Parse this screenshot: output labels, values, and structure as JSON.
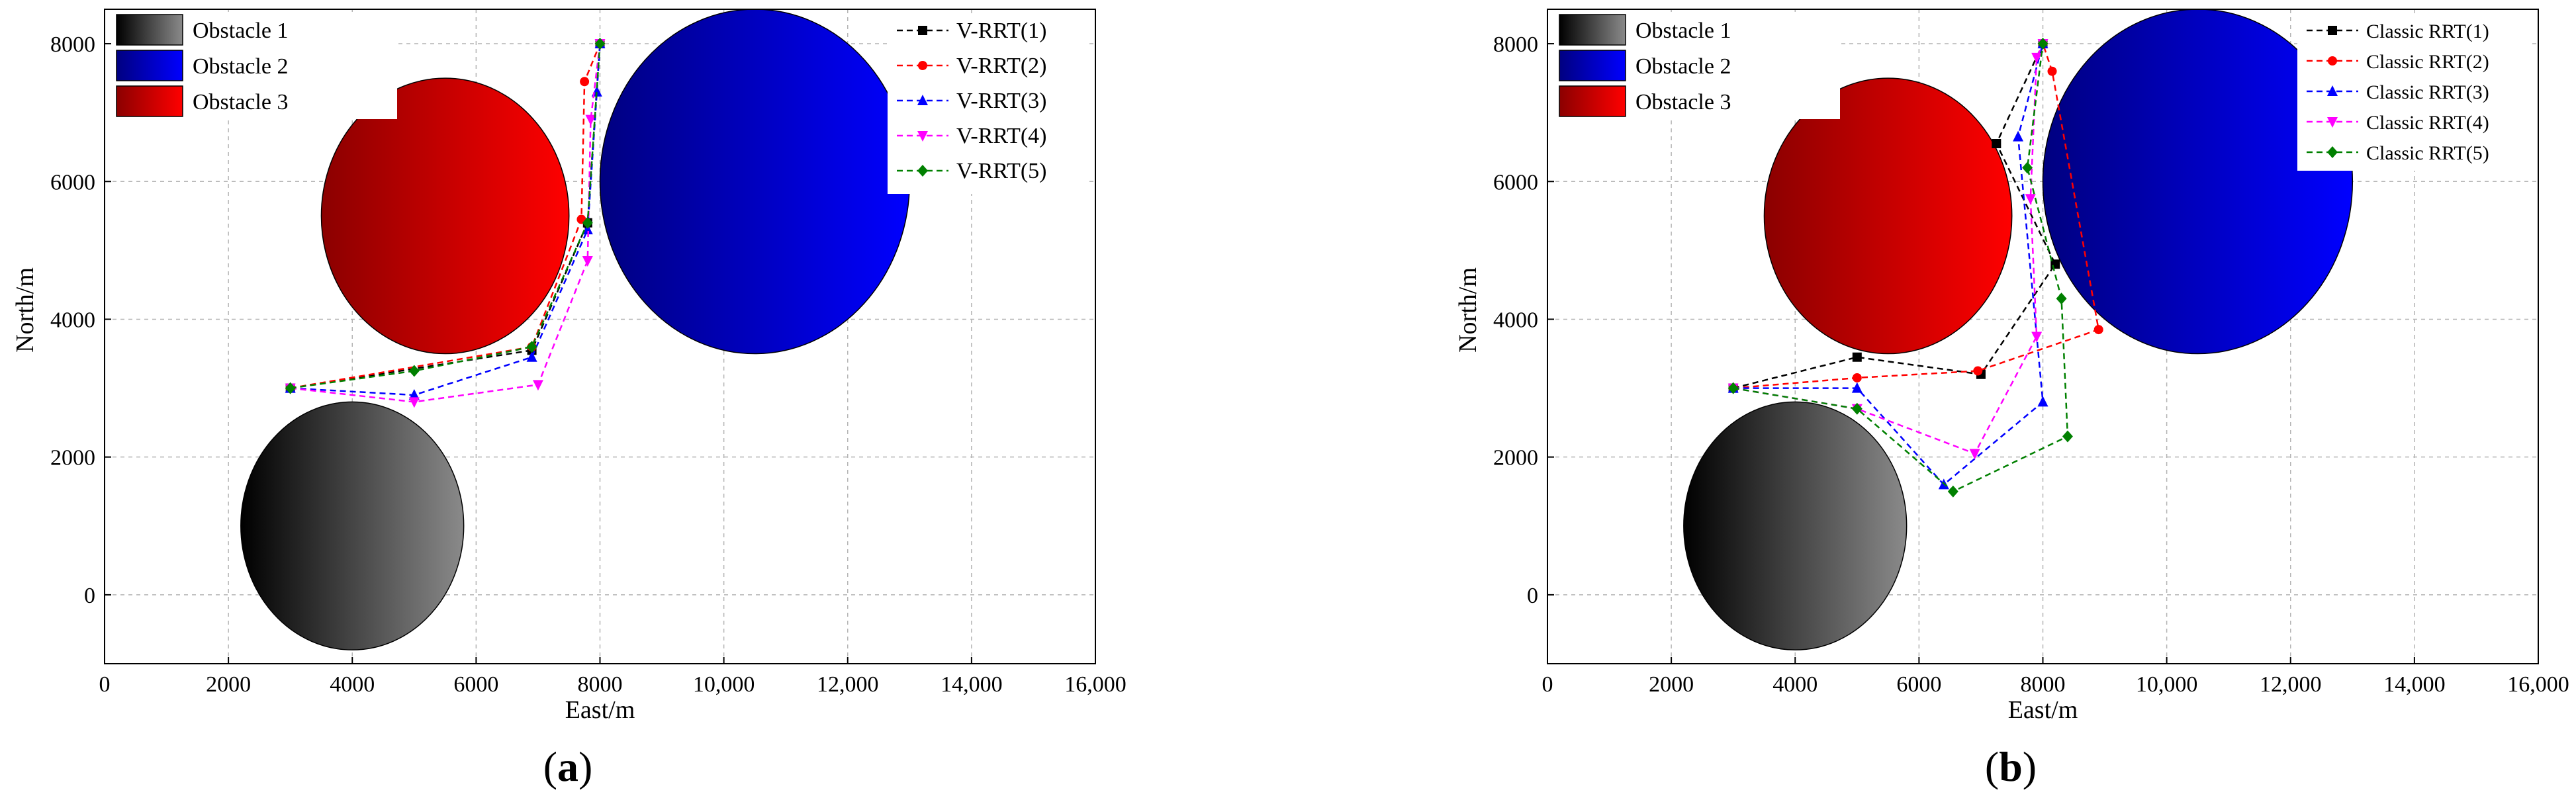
{
  "chart_data": [
    {
      "panel": "a",
      "type": "line",
      "xlabel": "East/m",
      "ylabel": "North/m",
      "xlim": [
        0,
        16000
      ],
      "ylim": [
        -1000,
        8500
      ],
      "x_ticks": [
        0,
        2000,
        4000,
        6000,
        8000,
        10000,
        12000,
        14000,
        16000
      ],
      "x_tick_labels": [
        "0",
        "2000",
        "4000",
        "6000",
        "8000",
        "10,000",
        "12,000",
        "14,000",
        "16,000"
      ],
      "y_ticks": [
        0,
        2000,
        4000,
        6000,
        8000
      ],
      "y_tick_labels": [
        "0",
        "2000",
        "4000",
        "6000",
        "8000"
      ],
      "grid": true,
      "obstacles": [
        {
          "name": "Obstacle 1",
          "cx": 4000,
          "cy": 1000,
          "r": 1800,
          "color_dark": "#000000",
          "color_light": "#8a8a8a"
        },
        {
          "name": "Obstacle 2",
          "cx": 10500,
          "cy": 6000,
          "r": 2500,
          "color_dark": "#000080",
          "color_light": "#0000ff"
        },
        {
          "name": "Obstacle 3",
          "cx": 5500,
          "cy": 5500,
          "r": 2000,
          "color_dark": "#8b0000",
          "color_light": "#ff0000"
        }
      ],
      "obstacle_legend_position": "top-left",
      "series_legend_position": "top-right",
      "series": [
        {
          "name": "V-RRT(1)",
          "color": "#000000",
          "marker": "square",
          "x": [
            3000,
            6900,
            7800,
            8000
          ],
          "y": [
            3000,
            3550,
            5400,
            8000
          ]
        },
        {
          "name": "V-RRT(2)",
          "color": "#ff0000",
          "marker": "circle",
          "x": [
            3000,
            6900,
            7700,
            7750,
            8000
          ],
          "y": [
            3000,
            3600,
            5450,
            7450,
            8000
          ]
        },
        {
          "name": "V-RRT(3)",
          "color": "#0000ff",
          "marker": "triangle-up",
          "x": [
            3000,
            5000,
            6900,
            7800,
            7950,
            8000
          ],
          "y": [
            3000,
            2900,
            3450,
            5300,
            7300,
            8000
          ]
        },
        {
          "name": "V-RRT(4)",
          "color": "#ff00ff",
          "marker": "triangle-down",
          "x": [
            3000,
            5000,
            7000,
            7800,
            7850,
            8000
          ],
          "y": [
            3000,
            2800,
            3050,
            4850,
            6900,
            8000
          ]
        },
        {
          "name": "V-RRT(5)",
          "color": "#008000",
          "marker": "diamond",
          "x": [
            3000,
            5000,
            6900,
            7800,
            8000
          ],
          "y": [
            3000,
            3250,
            3600,
            5400,
            8000
          ]
        }
      ]
    },
    {
      "panel": "b",
      "type": "line",
      "xlabel": "East/m",
      "ylabel": "North/m",
      "xlim": [
        0,
        16000
      ],
      "ylim": [
        -1000,
        8500
      ],
      "x_ticks": [
        0,
        2000,
        4000,
        6000,
        8000,
        10000,
        12000,
        14000,
        16000
      ],
      "x_tick_labels": [
        "0",
        "2000",
        "4000",
        "6000",
        "8000",
        "10,000",
        "12,000",
        "14,000",
        "16,000"
      ],
      "y_ticks": [
        0,
        2000,
        4000,
        6000,
        8000
      ],
      "y_tick_labels": [
        "0",
        "2000",
        "4000",
        "6000",
        "8000"
      ],
      "grid": true,
      "obstacles": [
        {
          "name": "Obstacle 1",
          "cx": 4000,
          "cy": 1000,
          "r": 1800,
          "color_dark": "#000000",
          "color_light": "#8a8a8a"
        },
        {
          "name": "Obstacle 2",
          "cx": 10500,
          "cy": 6000,
          "r": 2500,
          "color_dark": "#000080",
          "color_light": "#0000ff"
        },
        {
          "name": "Obstacle 3",
          "cx": 5500,
          "cy": 5500,
          "r": 2000,
          "color_dark": "#8b0000",
          "color_light": "#ff0000"
        }
      ],
      "obstacle_legend_position": "top-left",
      "series_legend_position": "top-right",
      "series": [
        {
          "name": "Classic RRT(1)",
          "color": "#000000",
          "marker": "square",
          "x": [
            3000,
            5000,
            7000,
            8200,
            7250,
            8000
          ],
          "y": [
            3000,
            3450,
            3200,
            4800,
            6550,
            8000
          ]
        },
        {
          "name": "Classic RRT(2)",
          "color": "#ff0000",
          "marker": "circle",
          "x": [
            3000,
            5000,
            6950,
            8900,
            8150,
            8000
          ],
          "y": [
            3000,
            3150,
            3250,
            3850,
            7600,
            8000
          ]
        },
        {
          "name": "Classic RRT(3)",
          "color": "#0000ff",
          "marker": "triangle-up",
          "x": [
            3000,
            5000,
            6400,
            8000,
            7600,
            8000
          ],
          "y": [
            3000,
            3000,
            1600,
            2800,
            6650,
            8000
          ]
        },
        {
          "name": "Classic RRT(4)",
          "color": "#ff00ff",
          "marker": "triangle-down",
          "x": [
            3000,
            5000,
            6900,
            7900,
            7800,
            7900,
            8000
          ],
          "y": [
            3000,
            2700,
            2050,
            3750,
            5750,
            7800,
            8000
          ]
        },
        {
          "name": "Classic RRT(5)",
          "color": "#008000",
          "marker": "diamond",
          "x": [
            3000,
            5000,
            6550,
            8400,
            8300,
            7750,
            8000
          ],
          "y": [
            3000,
            2700,
            1500,
            2300,
            4300,
            6200,
            8000
          ]
        }
      ]
    }
  ],
  "panels": [
    {
      "label_open": "(",
      "label_letter": "a",
      "label_close": ")"
    },
    {
      "label_open": "(",
      "label_letter": "b",
      "label_close": ")"
    }
  ]
}
